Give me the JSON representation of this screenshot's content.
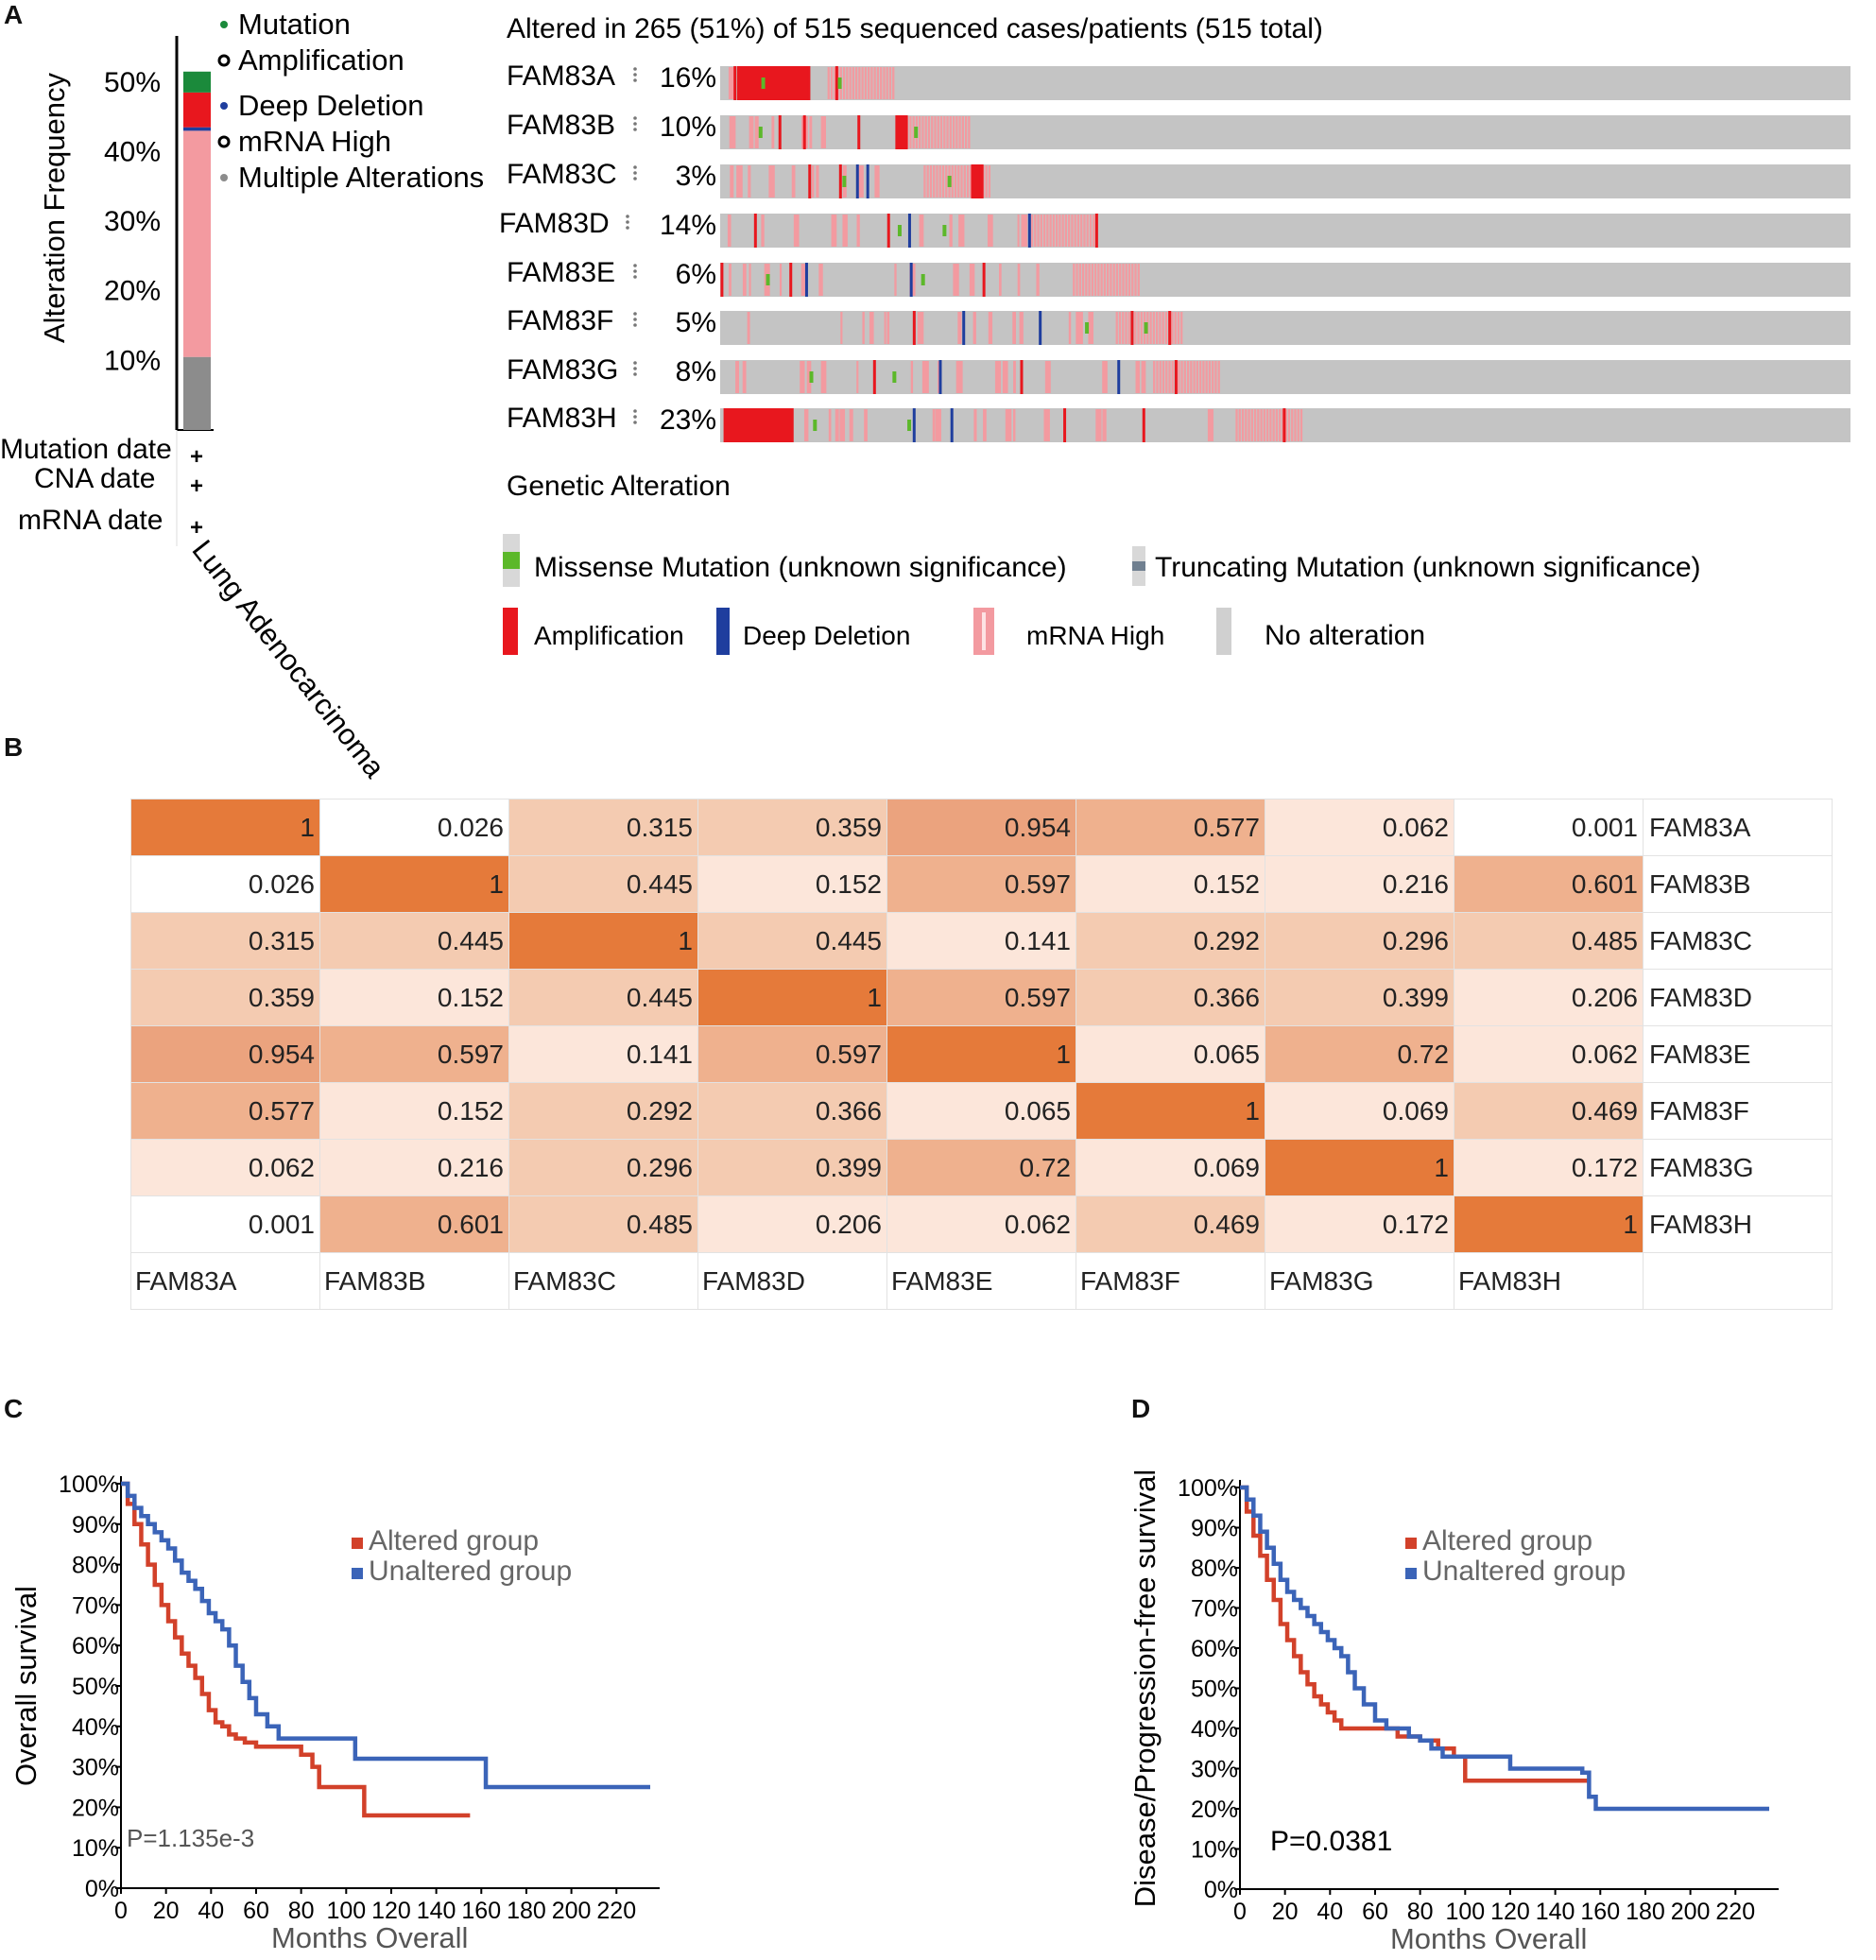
{
  "panels": {
    "a": "A",
    "b": "B",
    "c": "C",
    "d": "D"
  },
  "colors": {
    "amp": "#e8171e",
    "del": "#1f3e9e",
    "mrna": "#f39aa0",
    "mut": "#1b8a3b",
    "multi": "#8c8c8c",
    "missense": "#5cb82a",
    "trunc": "#708090",
    "none": "#c4c4c4"
  },
  "panel_a": {
    "header": "Altered in 265 (51%) of 515 sequenced cases/patients (515 total)",
    "y_axis_label": "Alteration Frequency",
    "y_ticks": [
      "50%",
      "40%",
      "30%",
      "20%",
      "10%"
    ],
    "bar_legend": [
      "Mutation",
      "Amplification",
      "Deep Deletion",
      "mRNA High",
      "Multiple Alterations"
    ],
    "stacked_bar": {
      "multiple": 10.5,
      "mrna_high": 32.5,
      "deep_deletion": 0.5,
      "amplification": 5,
      "mutation": 3
    },
    "data_types": [
      "Mutation date",
      "CNA date",
      "mRNA date"
    ],
    "cancer_type": "Lung Adenocarcinoma",
    "genes": [
      {
        "name": "FAM83A",
        "pct": "16%"
      },
      {
        "name": "FAM83B",
        "pct": "10%"
      },
      {
        "name": "FAM83C",
        "pct": "3%"
      },
      {
        "name": "FAM83D",
        "pct": "14%"
      },
      {
        "name": "FAM83E",
        "pct": "6%"
      },
      {
        "name": "FAM83F",
        "pct": "5%"
      },
      {
        "name": "FAM83G",
        "pct": "8%"
      },
      {
        "name": "FAM83H",
        "pct": "23%"
      }
    ],
    "genetic_alteration_title": "Genetic Alteration",
    "legend": {
      "missense": "Missense Mutation (unknown significance)",
      "truncating": "Truncating Mutation (unknown significance)",
      "amplification": "Amplification",
      "deep_deletion": "Deep Deletion",
      "mrna_high": "mRNA High",
      "no_alteration": "No alteration"
    }
  },
  "panel_b": {
    "genes": [
      "FAM83A",
      "FAM83B",
      "FAM83C",
      "FAM83D",
      "FAM83E",
      "FAM83F",
      "FAM83G",
      "FAM83H"
    ],
    "matrix": [
      [
        "1",
        "0.026",
        "0.315",
        "0.359",
        "0.954",
        "0.577",
        "0.062",
        "0.001"
      ],
      [
        "0.026",
        "1",
        "0.445",
        "0.152",
        "0.597",
        "0.152",
        "0.216",
        "0.601"
      ],
      [
        "0.315",
        "0.445",
        "1",
        "0.445",
        "0.141",
        "0.292",
        "0.296",
        "0.485"
      ],
      [
        "0.359",
        "0.152",
        "0.445",
        "1",
        "0.597",
        "0.366",
        "0.399",
        "0.206"
      ],
      [
        "0.954",
        "0.597",
        "0.141",
        "0.597",
        "1",
        "0.065",
        "0.72",
        "0.062"
      ],
      [
        "0.577",
        "0.152",
        "0.292",
        "0.366",
        "0.065",
        "1",
        "0.069",
        "0.469"
      ],
      [
        "0.062",
        "0.216",
        "0.296",
        "0.399",
        "0.72",
        "0.069",
        "1",
        "0.172"
      ],
      [
        "0.001",
        "0.601",
        "0.485",
        "0.206",
        "0.062",
        "0.469",
        "0.172",
        "1"
      ]
    ]
  },
  "chart_data": [
    {
      "type": "line",
      "title": "",
      "xlabel": "Months Overall",
      "ylabel": "Overall survival",
      "xlim": [
        0,
        235
      ],
      "ylim": [
        0,
        100
      ],
      "x_ticks": [
        "0",
        "20",
        "40",
        "60",
        "80",
        "100",
        "120",
        "140",
        "160",
        "180",
        "200",
        "220"
      ],
      "y_ticks": [
        "0%",
        "10%",
        "20%",
        "30%",
        "40%",
        "50%",
        "60%",
        "70%",
        "80%",
        "90%",
        "100%"
      ],
      "annotation": "P=1.135e-3",
      "legend": [
        "Altered group",
        "Unaltered group"
      ],
      "series": [
        {
          "name": "Altered group",
          "x": [
            0,
            3,
            6,
            9,
            12,
            15,
            18,
            21,
            24,
            27,
            30,
            33,
            36,
            39,
            42,
            45,
            48,
            51,
            55,
            60,
            70,
            80,
            85,
            88,
            100,
            108,
            125,
            140,
            155
          ],
          "y": [
            100,
            95,
            90,
            85,
            80,
            75,
            70,
            66,
            62,
            58,
            55,
            52,
            48,
            44,
            41,
            40,
            38,
            37,
            36,
            35,
            35,
            33,
            30,
            25,
            25,
            18,
            18,
            18,
            18
          ]
        },
        {
          "name": "Unaltered group",
          "x": [
            0,
            3,
            6,
            9,
            12,
            15,
            18,
            21,
            24,
            27,
            30,
            33,
            36,
            39,
            42,
            45,
            48,
            51,
            54,
            57,
            60,
            65,
            70,
            80,
            90,
            100,
            104,
            120,
            140,
            160,
            162,
            180,
            200,
            235
          ],
          "y": [
            100,
            97,
            94,
            92,
            90,
            88,
            86,
            84,
            81,
            78,
            76,
            74,
            71,
            68,
            66,
            64,
            60,
            55,
            51,
            47,
            43,
            40,
            37,
            37,
            37,
            37,
            32,
            32,
            32,
            32,
            25,
            25,
            25,
            25
          ]
        }
      ]
    },
    {
      "type": "line",
      "title": "",
      "xlabel": "Months Overall",
      "ylabel": "Disease/Progression-free survival",
      "xlim": [
        0,
        235
      ],
      "ylim": [
        0,
        100
      ],
      "x_ticks": [
        "0",
        "20",
        "40",
        "60",
        "80",
        "100",
        "120",
        "140",
        "160",
        "180",
        "200",
        "220"
      ],
      "y_ticks": [
        "0%",
        "10%",
        "20%",
        "30%",
        "40%",
        "50%",
        "60%",
        "70%",
        "80%",
        "90%",
        "100%"
      ],
      "annotation": "P=0.0381",
      "legend": [
        "Altered group",
        "Unaltered group"
      ],
      "series": [
        {
          "name": "Altered group",
          "x": [
            0,
            3,
            6,
            9,
            12,
            15,
            18,
            21,
            24,
            27,
            30,
            33,
            36,
            39,
            42,
            45,
            50,
            60,
            70,
            80,
            88,
            95,
            100,
            110,
            120,
            140,
            155
          ],
          "y": [
            100,
            94,
            88,
            83,
            77,
            72,
            66,
            62,
            58,
            54,
            51,
            48,
            46,
            44,
            42,
            40,
            40,
            40,
            38,
            37,
            35,
            33,
            27,
            27,
            27,
            27,
            27
          ]
        },
        {
          "name": "Unaltered group",
          "x": [
            0,
            3,
            6,
            9,
            12,
            15,
            18,
            21,
            24,
            27,
            30,
            33,
            36,
            39,
            42,
            45,
            48,
            51,
            55,
            60,
            65,
            75,
            80,
            85,
            90,
            100,
            108,
            115,
            120,
            130,
            140,
            150,
            152,
            155,
            158,
            235
          ],
          "y": [
            100,
            97,
            93,
            89,
            85,
            81,
            77,
            74,
            72,
            70,
            68,
            66,
            64,
            62,
            60,
            58,
            54,
            50,
            46,
            42,
            40,
            38,
            37,
            35,
            33,
            33,
            33,
            33,
            30,
            30,
            30,
            30,
            29,
            23,
            20,
            20
          ]
        }
      ]
    }
  ]
}
